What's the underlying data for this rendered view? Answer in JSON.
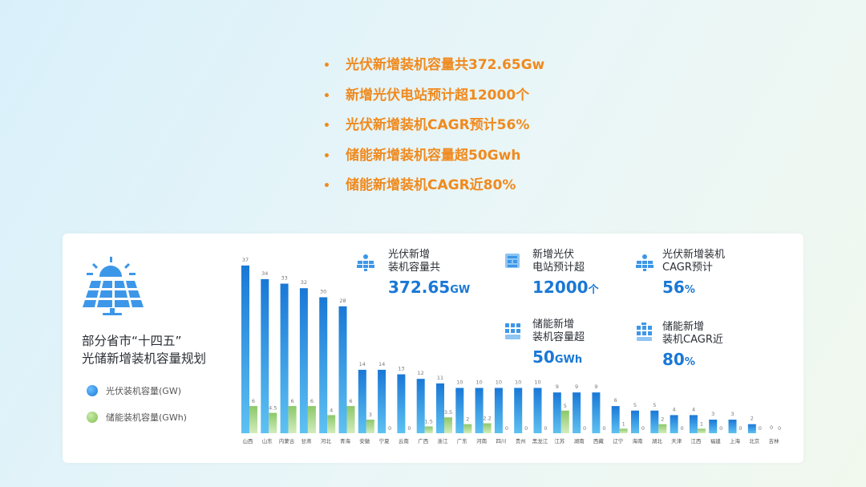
{
  "bullets": [
    "光伏新增装机容量共372.65Gw",
    "新增光伏电站预计超12000个",
    "光伏新增装机CAGR预计56%",
    "储能新增装机容量超50Gwh",
    "储能新增装机CAGR近80%"
  ],
  "bullet_marker": "•",
  "card": {
    "title_line1": "部分省市“十四五”",
    "title_line2": "光储新增装机容量规划"
  },
  "stats": [
    {
      "label1": "光伏新增",
      "label2": "装机容量共",
      "value": "372.65",
      "unit": "GW",
      "icon": "solar-panel-icon"
    },
    {
      "label1": "新增光伏",
      "label2": "电站预计超",
      "value": "12000",
      "unit": "个",
      "icon": "building-icon"
    },
    {
      "label1": "光伏新增装机",
      "label2": "CAGR预计",
      "value": "56",
      "unit": "%",
      "icon": "solar-panel-icon"
    },
    {
      "label1": "储能新增",
      "label2": "装机容量超",
      "value": "50",
      "unit": "GWh",
      "icon": "battery-grid-icon"
    },
    {
      "label1": "储能新增",
      "label2": "装机CAGR近",
      "value": "80",
      "unit": "%",
      "icon": "battery-grid-icon"
    }
  ],
  "colors": {
    "bullet_text": "#f08a1e",
    "pv_bar": "#1a86e6",
    "storage_bar": "#9fd27a",
    "stat_value": "#1a78d6"
  },
  "chart_data": {
    "type": "bar",
    "categories": [
      "山西",
      "山东",
      "内蒙古",
      "甘肃",
      "河北",
      "青海",
      "安徽",
      "宁夏",
      "云南",
      "广西",
      "浙江",
      "广东",
      "河南",
      "四川",
      "贵州",
      "黑龙江",
      "江苏",
      "湖南",
      "西藏",
      "辽宁",
      "海南",
      "湖北",
      "天津",
      "江西",
      "福建",
      "上海",
      "北京",
      "吉林"
    ],
    "series": [
      {
        "name": "光伏装机容量(GW)",
        "values": [
          37,
          34,
          33,
          32,
          30,
          28,
          14,
          14,
          13,
          12,
          11,
          10,
          10,
          10,
          10,
          10,
          9,
          9,
          9,
          6,
          5,
          5,
          4,
          4,
          3,
          3,
          2,
          0
        ]
      },
      {
        "name": "储能装机容量(GWh)",
        "values": [
          6,
          4.5,
          6,
          6,
          4,
          6,
          3,
          0,
          0,
          1.5,
          3.5,
          2,
          2.2,
          0,
          0,
          0,
          5,
          0,
          0,
          1,
          0,
          2,
          0,
          1,
          0,
          0,
          0,
          0
        ]
      }
    ],
    "legend": "left",
    "grid": false
  }
}
